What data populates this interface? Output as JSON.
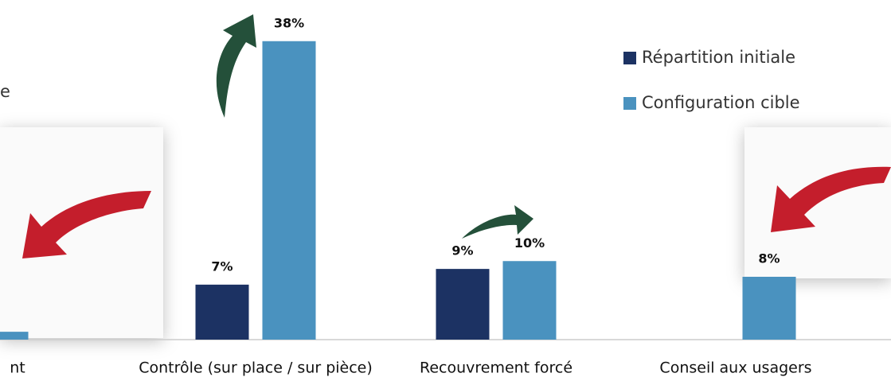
{
  "chart_data": {
    "type": "bar",
    "categories": [
      "nt",
      "Contrôle (sur place / sur pièce)",
      "Recouvrement forcé",
      "Conseil aux usagers"
    ],
    "series": [
      {
        "name": "Répartition initiale",
        "color": "#1c3263",
        "values": [
          null,
          7,
          9,
          null
        ],
        "value_labels": [
          null,
          "7%",
          "9%",
          null
        ]
      },
      {
        "name": "Configuration cible",
        "color": "#4a92bf",
        "values": [
          1,
          38,
          10,
          8
        ],
        "value_labels": [
          null,
          "38%",
          "10%",
          "8%"
        ]
      }
    ],
    "ylim": [
      0,
      40
    ],
    "annotations": [
      "e"
    ],
    "legend": "top-right"
  }
}
